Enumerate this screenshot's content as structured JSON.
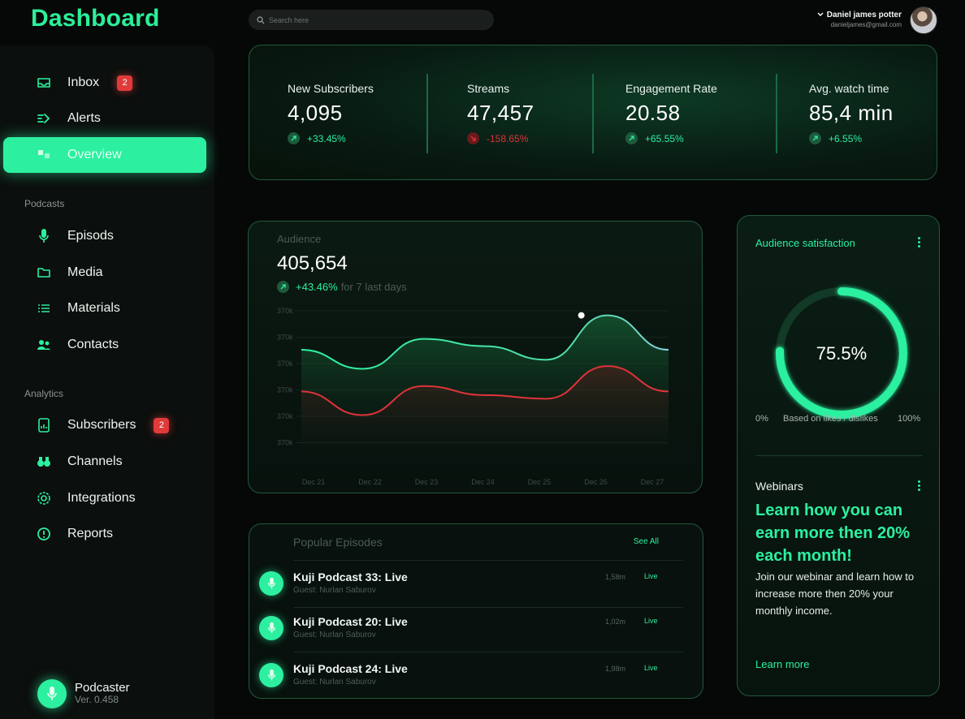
{
  "header": {
    "logo": "Dashboard",
    "search": {
      "placeholder": "Search here"
    },
    "user": {
      "name": "Daniel james potter",
      "email": "danieljames@gmail.com"
    }
  },
  "sidebar": {
    "items": [
      {
        "label": "Inbox",
        "badge": "2",
        "icon": "inbox-icon"
      },
      {
        "label": "Alerts",
        "icon": "alerts-icon"
      },
      {
        "label": "Overview",
        "icon": "overview-icon",
        "active": true
      }
    ],
    "podcasts_label": "Podcasts",
    "podcasts": [
      {
        "label": "Episods",
        "icon": "mic-icon"
      },
      {
        "label": "Media",
        "icon": "folder-icon"
      },
      {
        "label": "Materials",
        "icon": "list-icon"
      },
      {
        "label": "Contacts",
        "icon": "users-icon"
      }
    ],
    "analytics_label": "Analytics",
    "analytics": [
      {
        "label": "Subscribers",
        "badge": "2",
        "icon": "subscribers-icon"
      },
      {
        "label": "Channels",
        "icon": "binoculars-icon"
      },
      {
        "label": "Integrations",
        "icon": "integrations-icon"
      },
      {
        "label": "Reports",
        "icon": "reports-icon"
      }
    ],
    "footer": {
      "name": "Podcaster",
      "version": "Ver. 0.458"
    }
  },
  "stats": [
    {
      "label": "New Subscribers",
      "value": "4,095",
      "change": "+33.45%",
      "trend": "up"
    },
    {
      "label": "Streams",
      "value": "47,457",
      "change": "-158.65%",
      "trend": "down"
    },
    {
      "label": "Engagement Rate",
      "value": "20.58",
      "change": "+65.55%",
      "trend": "up"
    },
    {
      "label": "Avg. watch time",
      "value": "85,4 min",
      "change": "+6.55%",
      "trend": "up"
    }
  ],
  "audience": {
    "title": "Audience",
    "value": "405,654",
    "change": "+43.46%",
    "period": "for 7 last days"
  },
  "chart_data": {
    "type": "line",
    "title": "Audience",
    "categories": [
      "Dec 21",
      "Dec 22",
      "Dec 23",
      "Dec 24",
      "Dec 25",
      "Dec 26",
      "Dec 27"
    ],
    "ytick_labels": [
      "370k",
      "370k",
      "370k",
      "370k",
      "370k",
      "370k"
    ],
    "series": [
      {
        "color": "#2cf0a0",
        "values": [
          0.62,
          0.41,
          0.74,
          0.66,
          0.51,
          1.0,
          0.62
        ]
      },
      {
        "color": "#e0333a",
        "values": [
          0.16,
          -0.1,
          0.22,
          0.12,
          0.08,
          0.44,
          0.16
        ]
      }
    ],
    "ylim": [
      -0.4,
      1.05
    ],
    "grid": true,
    "highlight": {
      "series": 0,
      "index": 5
    }
  },
  "episodes": {
    "title": "Popular Episodes",
    "see_all": "See All",
    "items": [
      {
        "name": "Kuji Podcast  33: Live",
        "guest": "Guest: Nurlan Saburov",
        "duration": "1,58m",
        "status": "Live"
      },
      {
        "name": "Kuji Podcast  20: Live",
        "guest": "Guest: Nurlan Saburov",
        "duration": "1,02m",
        "status": "Live"
      },
      {
        "name": "Kuji Podcast  24: Live",
        "guest": "Guest: Nurlan Saburov",
        "duration": "1,98m",
        "status": "Live"
      }
    ]
  },
  "satisfaction": {
    "title": "Audience satisfaction",
    "value": "75.5%",
    "fraction": 0.755,
    "min_label": "0%",
    "caption": "Based on likes / dislikes",
    "max_label": "100%"
  },
  "webinars": {
    "title": "Webinars",
    "headline": "Learn how you can earn more then 20% each month!",
    "body": "Join our webinar and learn how to increase more then 20% your monthly income.",
    "link": "Learn more"
  },
  "colors": {
    "accent": "#2cf0a0",
    "danger": "#e0333a",
    "background": "#060807"
  }
}
